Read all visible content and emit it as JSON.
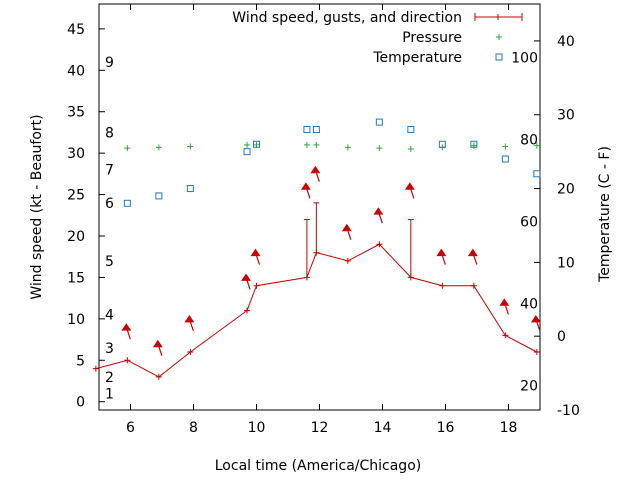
{
  "chart_data": {
    "type": "line",
    "xlabel": "Local time (America/Chicago)",
    "ylabel_left": "Wind speed (kt - Beaufort)",
    "ylabel_right": "Temperature (C - F)",
    "xlim": [
      5,
      19
    ],
    "ylim_left": [
      -1,
      48
    ],
    "ylim_right": [
      -10,
      45
    ],
    "x_ticks": [
      "6",
      "8",
      "10",
      "12",
      "14",
      "16",
      "18"
    ],
    "y_ticks_left": [
      "0",
      "5",
      "10",
      "15",
      "20",
      "25",
      "30",
      "35",
      "40",
      "45"
    ],
    "y_ticks_right": [
      "-10",
      "0",
      "10",
      "20",
      "30",
      "40"
    ],
    "beaufort_labels": [
      "1",
      "2",
      "3",
      "4",
      "5",
      "6",
      "7",
      "8",
      "9"
    ],
    "fahrenheit_labels": [
      "20",
      "40",
      "60",
      "80",
      "100"
    ],
    "legend_position": "top-right",
    "colors": {
      "wind": "#cc0000",
      "pressure": "#33aa33",
      "temperature": "#1f7ac0"
    },
    "series": [
      {
        "name": "Wind speed, gusts, and direction",
        "x": [
          4.9,
          5.9,
          6.9,
          7.9,
          9.7,
          10.0,
          11.6,
          11.9,
          12.9,
          13.9,
          14.9,
          15.9,
          16.9,
          17.9,
          18.9
        ],
        "values": [
          4,
          5,
          3,
          6,
          11,
          14,
          15,
          18,
          17,
          19,
          15,
          14,
          14,
          8,
          6
        ],
        "gusts": [
          null,
          null,
          null,
          null,
          null,
          null,
          22,
          24,
          null,
          null,
          22,
          null,
          null,
          null,
          null
        ],
        "arrows_y": [
          null,
          9,
          7,
          10,
          15,
          18,
          26,
          28,
          21,
          23,
          26,
          18,
          18,
          12,
          10
        ]
      },
      {
        "name": "Pressure",
        "x": [
          5.9,
          6.9,
          7.9,
          9.7,
          10.0,
          11.6,
          11.9,
          12.9,
          13.9,
          14.9,
          15.9,
          16.9,
          17.9,
          18.9
        ],
        "values": [
          30.6,
          30.7,
          30.8,
          31.0,
          31.0,
          31.0,
          31.0,
          30.7,
          30.6,
          30.5,
          30.7,
          30.9,
          30.8,
          30.9
        ]
      },
      {
        "name": "Temperature",
        "x": [
          5.9,
          6.9,
          7.9,
          9.7,
          10.0,
          11.6,
          11.9,
          13.9,
          14.9,
          15.9,
          16.9,
          17.9,
          18.9
        ],
        "values": [
          18,
          19,
          20,
          25,
          26,
          28,
          28,
          29,
          28,
          26,
          26,
          24,
          22
        ]
      }
    ]
  }
}
